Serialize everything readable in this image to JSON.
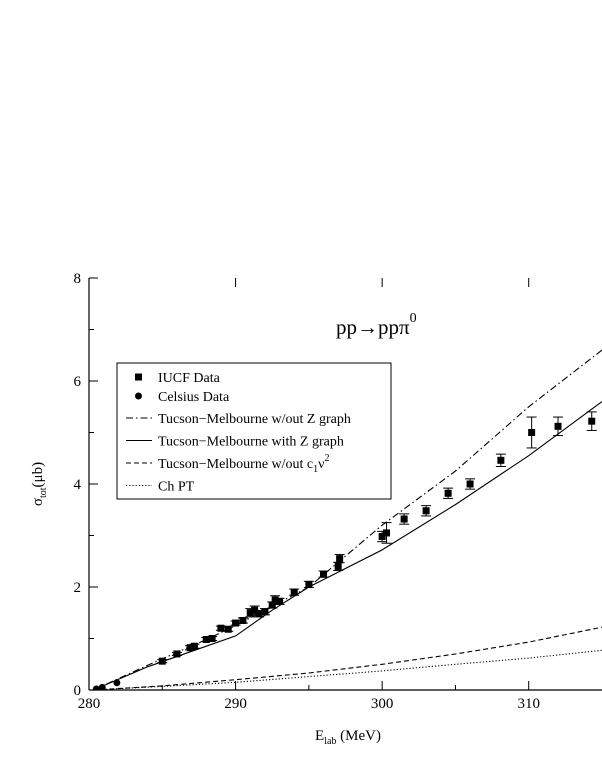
{
  "chart_data": {
    "type": "line",
    "title": "",
    "annotation": {
      "main": "pp→ppπ",
      "sup": "0"
    },
    "xlabel": {
      "main": "E",
      "sub": "lab",
      "rest": " (MeV)"
    },
    "ylabel": {
      "main": "σ",
      "sub": "tot",
      "rest": "(μb)"
    },
    "xlim": [
      280,
      315
    ],
    "ylim": [
      0,
      8
    ],
    "xticks": [
      280,
      290,
      300,
      310
    ],
    "yticks": [
      0,
      2,
      4,
      6,
      8
    ],
    "grid": false,
    "legend_position": "upper-left",
    "scatter_series": [
      {
        "name": "IUCF Data",
        "marker": "square",
        "points": [
          {
            "x": 285.0,
            "y": 0.56,
            "err": 0.03
          },
          {
            "x": 286.0,
            "y": 0.7,
            "err": 0.03
          },
          {
            "x": 286.9,
            "y": 0.82,
            "err": 0.04
          },
          {
            "x": 287.2,
            "y": 0.85,
            "err": 0.04
          },
          {
            "x": 288.0,
            "y": 0.98,
            "err": 0.04
          },
          {
            "x": 288.4,
            "y": 1.0,
            "err": 0.04
          },
          {
            "x": 289.0,
            "y": 1.2,
            "err": 0.04
          },
          {
            "x": 289.5,
            "y": 1.18,
            "err": 0.04
          },
          {
            "x": 290.0,
            "y": 1.3,
            "err": 0.04
          },
          {
            "x": 290.5,
            "y": 1.35,
            "err": 0.05
          },
          {
            "x": 291.0,
            "y": 1.5,
            "err": 0.08
          },
          {
            "x": 291.3,
            "y": 1.55,
            "err": 0.08
          },
          {
            "x": 291.6,
            "y": 1.48,
            "err": 0.06
          },
          {
            "x": 292.0,
            "y": 1.52,
            "err": 0.06
          },
          {
            "x": 292.5,
            "y": 1.65,
            "err": 0.06
          },
          {
            "x": 292.7,
            "y": 1.75,
            "err": 0.08
          },
          {
            "x": 293.0,
            "y": 1.72,
            "err": 0.06
          },
          {
            "x": 294.0,
            "y": 1.9,
            "err": 0.06
          },
          {
            "x": 295.0,
            "y": 2.05,
            "err": 0.06
          },
          {
            "x": 296.0,
            "y": 2.25,
            "err": 0.06
          },
          {
            "x": 297.0,
            "y": 2.4,
            "err": 0.08
          },
          {
            "x": 297.1,
            "y": 2.55,
            "err": 0.08
          },
          {
            "x": 300.0,
            "y": 2.98,
            "err": 0.1
          },
          {
            "x": 300.3,
            "y": 3.05,
            "err": 0.2
          },
          {
            "x": 301.5,
            "y": 3.32,
            "err": 0.1
          },
          {
            "x": 303.0,
            "y": 3.48,
            "err": 0.1
          },
          {
            "x": 304.5,
            "y": 3.82,
            "err": 0.1
          },
          {
            "x": 306.0,
            "y": 4.0,
            "err": 0.1
          },
          {
            "x": 308.1,
            "y": 4.46,
            "err": 0.12
          },
          {
            "x": 310.2,
            "y": 5.0,
            "err": 0.3
          },
          {
            "x": 312.0,
            "y": 5.12,
            "err": 0.18
          },
          {
            "x": 314.3,
            "y": 5.22,
            "err": 0.18
          }
        ]
      },
      {
        "name": "Celsius Data",
        "marker": "circle",
        "points": [
          {
            "x": 280.5,
            "y": 0.02
          },
          {
            "x": 280.9,
            "y": 0.05
          },
          {
            "x": 281.9,
            "y": 0.14
          }
        ]
      }
    ],
    "line_series": [
      {
        "name": "Tucson−Melbourne w/out Z graph",
        "dash": "dashdot",
        "points": [
          [
            280.3,
            0.0
          ],
          [
            284,
            0.48
          ],
          [
            288,
            0.98
          ],
          [
            290,
            1.25
          ],
          [
            295,
            2.0
          ],
          [
            300,
            3.2
          ],
          [
            305,
            4.25
          ],
          [
            310,
            5.5
          ],
          [
            315,
            6.6
          ]
        ]
      },
      {
        "name": "Tucson−Melbourne with Z graph",
        "dash": "solid",
        "points": [
          [
            280.3,
            0.0
          ],
          [
            284,
            0.45
          ],
          [
            288,
            0.85
          ],
          [
            290,
            1.05
          ],
          [
            292.5,
            1.55
          ],
          [
            295,
            2.0
          ],
          [
            300,
            2.72
          ],
          [
            305,
            3.6
          ],
          [
            310,
            4.55
          ],
          [
            315,
            5.6
          ]
        ]
      },
      {
        "name": "Tucson−Melbourne w/out c",
        "name_sub": "1",
        "name_rest": "ν",
        "name_sup": "2",
        "dash": "dashed",
        "points": [
          [
            280.3,
            0.0
          ],
          [
            285,
            0.08
          ],
          [
            290,
            0.2
          ],
          [
            295,
            0.33
          ],
          [
            300,
            0.5
          ],
          [
            305,
            0.7
          ],
          [
            310,
            0.93
          ],
          [
            315,
            1.22
          ]
        ]
      },
      {
        "name": "Ch PT",
        "dash": "dotted",
        "points": [
          [
            280.3,
            0.0
          ],
          [
            285,
            0.07
          ],
          [
            290,
            0.15
          ],
          [
            295,
            0.26
          ],
          [
            300,
            0.37
          ],
          [
            305,
            0.5
          ],
          [
            310,
            0.62
          ],
          [
            315,
            0.77
          ]
        ]
      }
    ]
  }
}
